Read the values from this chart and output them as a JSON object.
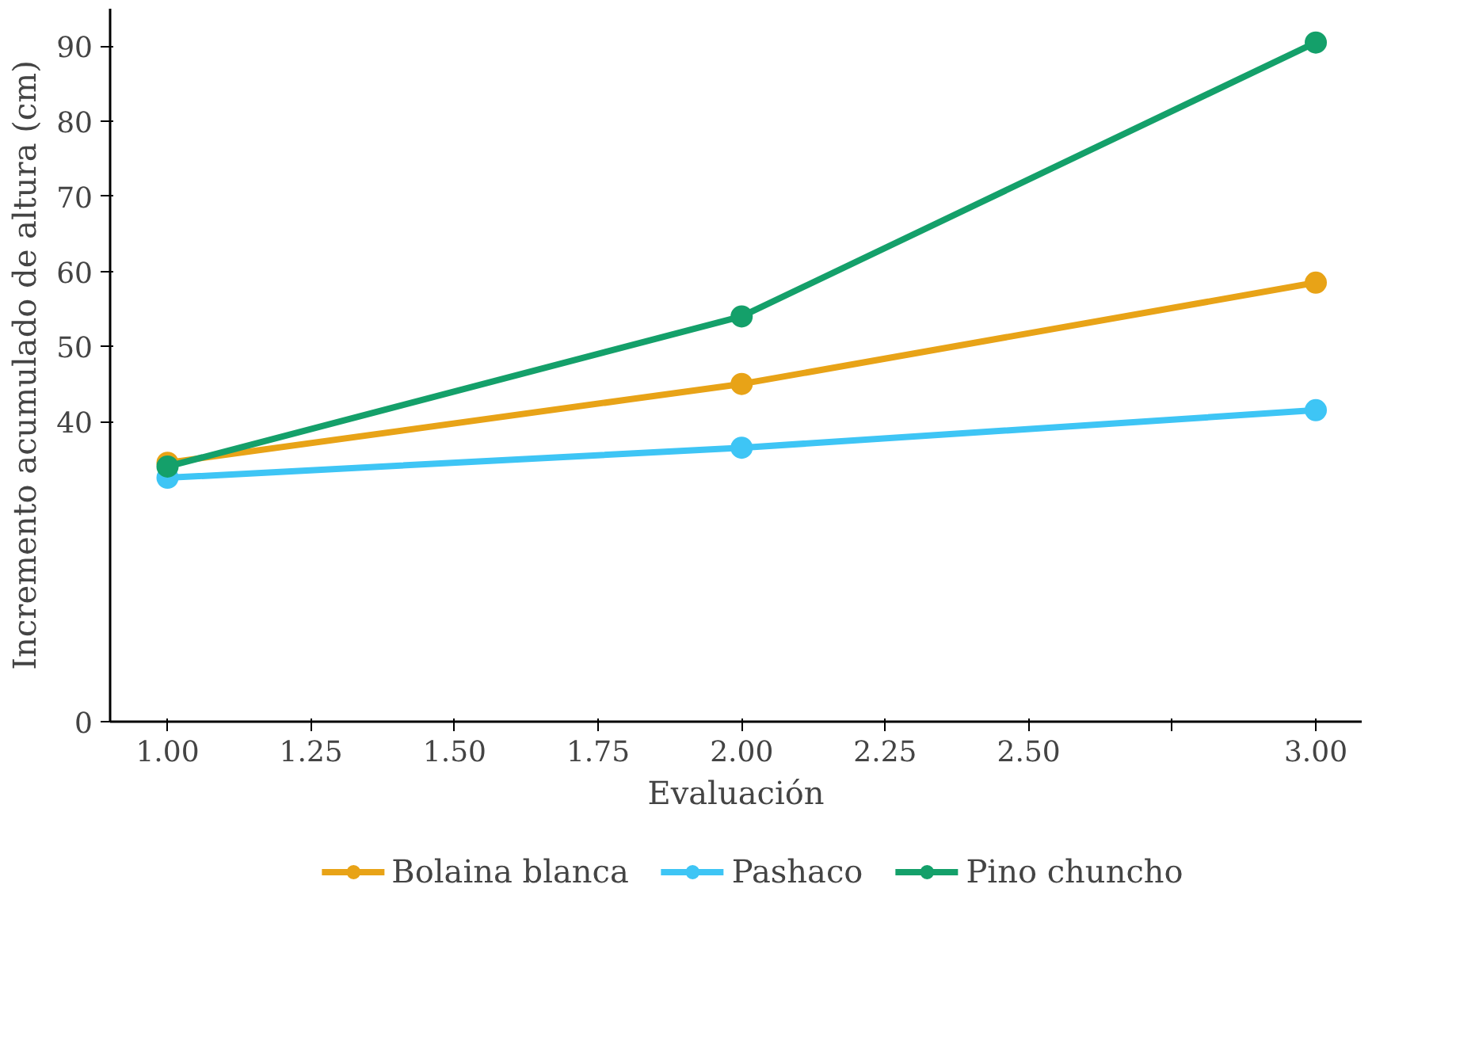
{
  "chart_data": {
    "type": "line",
    "xlabel": "Evaluación",
    "ylabel": "Incremento acumulado de altura (cm)",
    "x": [
      1.0,
      2.0,
      3.0
    ],
    "series": [
      {
        "name": "Bolaina blanca",
        "color": "#e8a317",
        "values": [
          34.5,
          45,
          58.5
        ]
      },
      {
        "name": "Pashaco",
        "color": "#3ec5f5",
        "values": [
          32.5,
          36.5,
          41.5
        ]
      },
      {
        "name": "Pino chuncho",
        "color": "#14a06a",
        "values": [
          34,
          54,
          90.5
        ]
      }
    ],
    "xlim": [
      0.9,
      3.08
    ],
    "ylim": [
      0,
      95
    ],
    "xticks": [
      {
        "value": 1.0,
        "label": "1.00"
      },
      {
        "value": 1.25,
        "label": "1.25"
      },
      {
        "value": 1.5,
        "label": "1.50"
      },
      {
        "value": 1.75,
        "label": "1.75"
      },
      {
        "value": 2.0,
        "label": "2.00"
      },
      {
        "value": 2.25,
        "label": "2.25"
      },
      {
        "value": 2.5,
        "label": "2.50"
      },
      {
        "value": 2.75,
        "label": null
      },
      {
        "value": 3.0,
        "label": "3.00"
      }
    ],
    "yticks": [
      0,
      40,
      50,
      60,
      70,
      80,
      90
    ],
    "marker": "circle",
    "line_style": "solid",
    "legend": "bottom",
    "grid": false
  }
}
